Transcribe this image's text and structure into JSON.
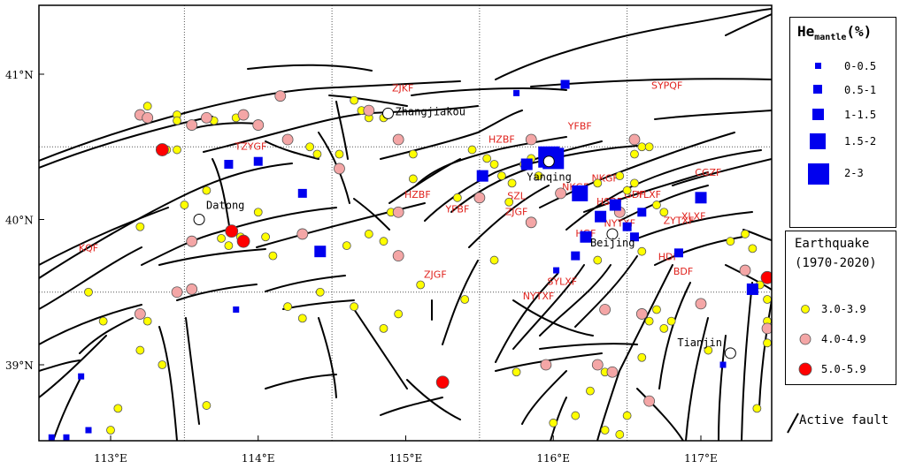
{
  "axes": {
    "lat_labels": [
      "41°N",
      "40°N",
      "39°N"
    ],
    "lon_labels": [
      "113°E",
      "114°E",
      "115°E",
      "116°E",
      "117°E"
    ]
  },
  "cities": [
    {
      "name": "Zhangjiakou",
      "lon": 114.88,
      "lat": 40.73
    },
    {
      "name": "Datong",
      "lon": 113.6,
      "lat": 40.0
    },
    {
      "name": "Yanqing",
      "lon": 115.97,
      "lat": 40.4
    },
    {
      "name": "Beijing",
      "lon": 116.4,
      "lat": 39.9
    },
    {
      "name": "Tianjin",
      "lon": 117.2,
      "lat": 39.08
    }
  ],
  "faults": [
    {
      "code": "ZJKF",
      "lon": 114.98,
      "lat": 40.88
    },
    {
      "code": "SYPQF",
      "lon": 116.77,
      "lat": 40.9
    },
    {
      "code": "YFBF",
      "lon": 116.18,
      "lat": 40.62
    },
    {
      "code": "HZBF",
      "lon": 115.65,
      "lat": 40.53
    },
    {
      "code": "TZYGF",
      "lon": 113.95,
      "lat": 40.48
    },
    {
      "code": "CGZF",
      "lon": 117.05,
      "lat": 40.3
    },
    {
      "code": "HZBF",
      "lon": 115.08,
      "lat": 40.15
    },
    {
      "code": "YFBF",
      "lon": 115.35,
      "lat": 40.05
    },
    {
      "code": "SZL",
      "lon": 115.75,
      "lat": 40.14
    },
    {
      "code": "ZJGF",
      "lon": 115.75,
      "lat": 40.03
    },
    {
      "code": "NKGF",
      "lon": 116.15,
      "lat": 40.2
    },
    {
      "code": "NKGF",
      "lon": 116.35,
      "lat": 40.26
    },
    {
      "code": "HSBF",
      "lon": 116.38,
      "lat": 40.1
    },
    {
      "code": "GDF",
      "lon": 116.55,
      "lat": 40.15
    },
    {
      "code": "YLXF",
      "lon": 116.65,
      "lat": 40.15
    },
    {
      "code": "ZYTXF",
      "lon": 116.85,
      "lat": 39.97
    },
    {
      "code": "XLXF",
      "lon": 116.95,
      "lat": 40.0
    },
    {
      "code": "HGF",
      "lon": 116.22,
      "lat": 39.88
    },
    {
      "code": "NYTXF",
      "lon": 116.45,
      "lat": 39.95
    },
    {
      "code": "SYLXF",
      "lon": 116.06,
      "lat": 39.55
    },
    {
      "code": "NYTXF",
      "lon": 115.9,
      "lat": 39.45
    },
    {
      "code": "KQF",
      "lon": 112.85,
      "lat": 39.78
    },
    {
      "code": "ZJGF",
      "lon": 115.2,
      "lat": 39.6
    },
    {
      "code": "HDF",
      "lon": 116.78,
      "lat": 39.72
    },
    {
      "code": "BDF",
      "lon": 116.88,
      "lat": 39.62
    }
  ],
  "helium_samples": [
    {
      "lon": 115.97,
      "lat": 40.43,
      "class": 4
    },
    {
      "lon": 116.0,
      "lat": 40.42,
      "class": 4
    },
    {
      "lon": 116.18,
      "lat": 40.18,
      "class": 3
    },
    {
      "lon": 114.42,
      "lat": 39.78,
      "class": 2
    },
    {
      "lon": 115.82,
      "lat": 40.38,
      "class": 2
    },
    {
      "lon": 115.52,
      "lat": 40.3,
      "class": 2
    },
    {
      "lon": 116.22,
      "lat": 39.88,
      "class": 2
    },
    {
      "lon": 116.42,
      "lat": 40.1,
      "class": 2
    },
    {
      "lon": 116.32,
      "lat": 40.02,
      "class": 2
    },
    {
      "lon": 117.0,
      "lat": 40.15,
      "class": 2
    },
    {
      "lon": 117.35,
      "lat": 39.52,
      "class": 2
    },
    {
      "lon": 116.5,
      "lat": 39.95,
      "class": 1
    },
    {
      "lon": 116.55,
      "lat": 39.88,
      "class": 1
    },
    {
      "lon": 116.6,
      "lat": 40.05,
      "class": 1
    },
    {
      "lon": 114.3,
      "lat": 40.18,
      "class": 1
    },
    {
      "lon": 113.8,
      "lat": 40.38,
      "class": 1
    },
    {
      "lon": 114.0,
      "lat": 40.4,
      "class": 1
    },
    {
      "lon": 116.08,
      "lat": 40.93,
      "class": 1
    },
    {
      "lon": 116.85,
      "lat": 39.77,
      "class": 1
    },
    {
      "lon": 116.15,
      "lat": 39.75,
      "class": 1
    },
    {
      "lon": 116.02,
      "lat": 39.65,
      "class": 0
    },
    {
      "lon": 115.75,
      "lat": 40.87,
      "class": 0
    },
    {
      "lon": 113.85,
      "lat": 39.38,
      "class": 0
    },
    {
      "lon": 112.8,
      "lat": 38.92,
      "class": 0
    },
    {
      "lon": 112.85,
      "lat": 38.55,
      "class": 0
    },
    {
      "lon": 112.6,
      "lat": 38.5,
      "class": 0
    },
    {
      "lon": 112.7,
      "lat": 38.5,
      "class": 0
    },
    {
      "lon": 117.15,
      "lat": 39.0,
      "class": 0
    }
  ],
  "earthquakes": [
    {
      "lon": 113.35,
      "lat": 40.48,
      "mag": 2
    },
    {
      "lon": 113.9,
      "lat": 39.85,
      "mag": 2
    },
    {
      "lon": 113.82,
      "lat": 39.92,
      "mag": 2
    },
    {
      "lon": 115.25,
      "lat": 38.88,
      "mag": 2
    },
    {
      "lon": 117.45,
      "lat": 39.6,
      "mag": 2
    },
    {
      "lon": 113.25,
      "lat": 40.78,
      "mag": 0
    },
    {
      "lon": 113.45,
      "lat": 40.72,
      "mag": 0
    },
    {
      "lon": 113.45,
      "lat": 40.68,
      "mag": 0
    },
    {
      "lon": 113.7,
      "lat": 40.68,
      "mag": 0
    },
    {
      "lon": 113.85,
      "lat": 40.7,
      "mag": 0
    },
    {
      "lon": 113.45,
      "lat": 40.48,
      "mag": 0
    },
    {
      "lon": 113.38,
      "lat": 40.48,
      "mag": 0
    },
    {
      "lon": 113.65,
      "lat": 40.2,
      "mag": 0
    },
    {
      "lon": 113.2,
      "lat": 39.95,
      "mag": 0
    },
    {
      "lon": 113.75,
      "lat": 39.87,
      "mag": 0
    },
    {
      "lon": 113.8,
      "lat": 39.82,
      "mag": 0
    },
    {
      "lon": 113.88,
      "lat": 39.88,
      "mag": 0
    },
    {
      "lon": 114.05,
      "lat": 39.88,
      "mag": 0
    },
    {
      "lon": 114.1,
      "lat": 39.75,
      "mag": 0
    },
    {
      "lon": 114.4,
      "lat": 40.45,
      "mag": 0
    },
    {
      "lon": 114.55,
      "lat": 40.45,
      "mag": 0
    },
    {
      "lon": 114.35,
      "lat": 40.5,
      "mag": 0
    },
    {
      "lon": 114.7,
      "lat": 40.75,
      "mag": 0
    },
    {
      "lon": 114.75,
      "lat": 40.7,
      "mag": 0
    },
    {
      "lon": 114.85,
      "lat": 40.7,
      "mag": 0
    },
    {
      "lon": 114.65,
      "lat": 40.82,
      "mag": 0
    },
    {
      "lon": 114.6,
      "lat": 39.82,
      "mag": 0
    },
    {
      "lon": 114.75,
      "lat": 39.9,
      "mag": 0
    },
    {
      "lon": 114.85,
      "lat": 39.85,
      "mag": 0
    },
    {
      "lon": 114.9,
      "lat": 40.05,
      "mag": 0
    },
    {
      "lon": 115.05,
      "lat": 40.45,
      "mag": 0
    },
    {
      "lon": 115.05,
      "lat": 40.28,
      "mag": 0
    },
    {
      "lon": 115.35,
      "lat": 40.15,
      "mag": 0
    },
    {
      "lon": 115.45,
      "lat": 40.48,
      "mag": 0
    },
    {
      "lon": 115.55,
      "lat": 40.42,
      "mag": 0
    },
    {
      "lon": 115.6,
      "lat": 40.38,
      "mag": 0
    },
    {
      "lon": 115.65,
      "lat": 40.3,
      "mag": 0
    },
    {
      "lon": 115.72,
      "lat": 40.25,
      "mag": 0
    },
    {
      "lon": 115.7,
      "lat": 40.12,
      "mag": 0
    },
    {
      "lon": 115.8,
      "lat": 40.38,
      "mag": 0
    },
    {
      "lon": 115.85,
      "lat": 40.42,
      "mag": 0
    },
    {
      "lon": 115.9,
      "lat": 40.3,
      "mag": 0
    },
    {
      "lon": 115.6,
      "lat": 39.72,
      "mag": 0
    },
    {
      "lon": 115.4,
      "lat": 39.45,
      "mag": 0
    },
    {
      "lon": 116.3,
      "lat": 40.25,
      "mag": 0
    },
    {
      "lon": 116.45,
      "lat": 40.3,
      "mag": 0
    },
    {
      "lon": 116.5,
      "lat": 40.2,
      "mag": 0
    },
    {
      "lon": 116.55,
      "lat": 40.25,
      "mag": 0
    },
    {
      "lon": 116.55,
      "lat": 40.45,
      "mag": 0
    },
    {
      "lon": 116.6,
      "lat": 40.5,
      "mag": 0
    },
    {
      "lon": 116.65,
      "lat": 40.5,
      "mag": 0
    },
    {
      "lon": 116.7,
      "lat": 40.1,
      "mag": 0
    },
    {
      "lon": 116.75,
      "lat": 40.05,
      "mag": 0
    },
    {
      "lon": 116.6,
      "lat": 39.78,
      "mag": 0
    },
    {
      "lon": 116.3,
      "lat": 39.72,
      "mag": 0
    },
    {
      "lon": 116.7,
      "lat": 39.38,
      "mag": 0
    },
    {
      "lon": 116.8,
      "lat": 39.3,
      "mag": 0
    },
    {
      "lon": 116.75,
      "lat": 39.25,
      "mag": 0
    },
    {
      "lon": 116.65,
      "lat": 39.3,
      "mag": 0
    },
    {
      "lon": 116.6,
      "lat": 39.05,
      "mag": 0
    },
    {
      "lon": 116.35,
      "lat": 38.95,
      "mag": 0
    },
    {
      "lon": 116.25,
      "lat": 38.82,
      "mag": 0
    },
    {
      "lon": 116.15,
      "lat": 38.65,
      "mag": 0
    },
    {
      "lon": 116.35,
      "lat": 38.55,
      "mag": 0
    },
    {
      "lon": 116.45,
      "lat": 38.52,
      "mag": 0
    },
    {
      "lon": 116.0,
      "lat": 38.6,
      "mag": 0
    },
    {
      "lon": 116.5,
      "lat": 38.65,
      "mag": 0
    },
    {
      "lon": 117.05,
      "lat": 39.1,
      "mag": 0
    },
    {
      "lon": 117.2,
      "lat": 39.85,
      "mag": 0
    },
    {
      "lon": 117.3,
      "lat": 39.9,
      "mag": 0
    },
    {
      "lon": 117.35,
      "lat": 39.8,
      "mag": 0
    },
    {
      "lon": 117.4,
      "lat": 39.55,
      "mag": 0
    },
    {
      "lon": 117.45,
      "lat": 39.45,
      "mag": 0
    },
    {
      "lon": 117.45,
      "lat": 39.3,
      "mag": 0
    },
    {
      "lon": 117.45,
      "lat": 39.15,
      "mag": 0
    },
    {
      "lon": 117.38,
      "lat": 38.7,
      "mag": 0
    },
    {
      "lon": 115.1,
      "lat": 39.55,
      "mag": 0
    },
    {
      "lon": 114.2,
      "lat": 39.4,
      "mag": 0
    },
    {
      "lon": 114.3,
      "lat": 39.32,
      "mag": 0
    },
    {
      "lon": 114.85,
      "lat": 39.25,
      "mag": 0
    },
    {
      "lon": 113.2,
      "lat": 39.1,
      "mag": 0
    },
    {
      "lon": 113.35,
      "lat": 39.0,
      "mag": 0
    },
    {
      "lon": 113.05,
      "lat": 38.7,
      "mag": 0
    },
    {
      "lon": 113.0,
      "lat": 38.55,
      "mag": 0
    },
    {
      "lon": 113.2,
      "lat": 38.2,
      "mag": 0
    },
    {
      "lon": 113.65,
      "lat": 38.72,
      "mag": 0
    },
    {
      "lon": 113.25,
      "lat": 39.3,
      "mag": 0
    },
    {
      "lon": 112.95,
      "lat": 39.3,
      "mag": 0
    },
    {
      "lon": 114.42,
      "lat": 39.5,
      "mag": 0
    },
    {
      "lon": 114.65,
      "lat": 39.4,
      "mag": 0
    },
    {
      "lon": 114.95,
      "lat": 39.35,
      "mag": 0
    },
    {
      "lon": 115.75,
      "lat": 38.95,
      "mag": 0
    },
    {
      "lon": 114.0,
      "lat": 40.05,
      "mag": 0
    },
    {
      "lon": 112.85,
      "lat": 39.5,
      "mag": 0
    },
    {
      "lon": 113.5,
      "lat": 40.1,
      "mag": 0
    },
    {
      "lon": 113.2,
      "lat": 40.72,
      "mag": 1
    },
    {
      "lon": 113.25,
      "lat": 40.7,
      "mag": 1
    },
    {
      "lon": 113.55,
      "lat": 40.65,
      "mag": 1
    },
    {
      "lon": 113.65,
      "lat": 40.7,
      "mag": 1
    },
    {
      "lon": 113.9,
      "lat": 40.72,
      "mag": 1
    },
    {
      "lon": 114.0,
      "lat": 40.65,
      "mag": 1
    },
    {
      "lon": 114.15,
      "lat": 40.85,
      "mag": 1
    },
    {
      "lon": 114.2,
      "lat": 40.55,
      "mag": 1
    },
    {
      "lon": 114.55,
      "lat": 40.35,
      "mag": 1
    },
    {
      "lon": 114.95,
      "lat": 40.55,
      "mag": 1
    },
    {
      "lon": 114.75,
      "lat": 40.75,
      "mag": 1
    },
    {
      "lon": 114.3,
      "lat": 39.9,
      "mag": 1
    },
    {
      "lon": 113.55,
      "lat": 39.85,
      "mag": 1
    },
    {
      "lon": 113.45,
      "lat": 39.5,
      "mag": 1
    },
    {
      "lon": 113.55,
      "lat": 39.52,
      "mag": 1
    },
    {
      "lon": 113.2,
      "lat": 39.35,
      "mag": 1
    },
    {
      "lon": 114.95,
      "lat": 39.75,
      "mag": 1
    },
    {
      "lon": 114.95,
      "lat": 40.05,
      "mag": 1
    },
    {
      "lon": 115.5,
      "lat": 40.15,
      "mag": 1
    },
    {
      "lon": 115.85,
      "lat": 40.55,
      "mag": 1
    },
    {
      "lon": 115.85,
      "lat": 39.98,
      "mag": 1
    },
    {
      "lon": 116.05,
      "lat": 40.18,
      "mag": 1
    },
    {
      "lon": 116.55,
      "lat": 40.55,
      "mag": 1
    },
    {
      "lon": 116.45,
      "lat": 40.05,
      "mag": 1
    },
    {
      "lon": 116.35,
      "lat": 39.38,
      "mag": 1
    },
    {
      "lon": 116.6,
      "lat": 39.35,
      "mag": 1
    },
    {
      "lon": 116.65,
      "lat": 38.75,
      "mag": 1
    },
    {
      "lon": 116.3,
      "lat": 39.0,
      "mag": 1
    },
    {
      "lon": 116.4,
      "lat": 38.95,
      "mag": 1
    },
    {
      "lon": 117.0,
      "lat": 39.42,
      "mag": 1
    },
    {
      "lon": 117.3,
      "lat": 39.65,
      "mag": 1
    },
    {
      "lon": 117.45,
      "lat": 39.25,
      "mag": 1
    },
    {
      "lon": 115.95,
      "lat": 39.0,
      "mag": 1
    }
  ],
  "legend_he": {
    "title_main": "He",
    "title_sub": "mantle",
    "title_unit": "(%)",
    "items": [
      "0-0.5",
      "0.5-1",
      "1-1.5",
      "1.5-2",
      "2-3"
    ]
  },
  "legend_eq": {
    "title_line1": "Earthquake",
    "title_line2": "(1970-2020)",
    "items": [
      "3.0-3.9",
      "4.0-4.9",
      "5.0-5.9"
    ],
    "colors": [
      "#ffff00",
      "#f4a6a6",
      "#ff0000"
    ]
  },
  "legend_fault": {
    "label": "Active fault"
  },
  "colors": {
    "fault_label": "#e0221d",
    "helium": "#0000ee",
    "grid": "#000000"
  }
}
